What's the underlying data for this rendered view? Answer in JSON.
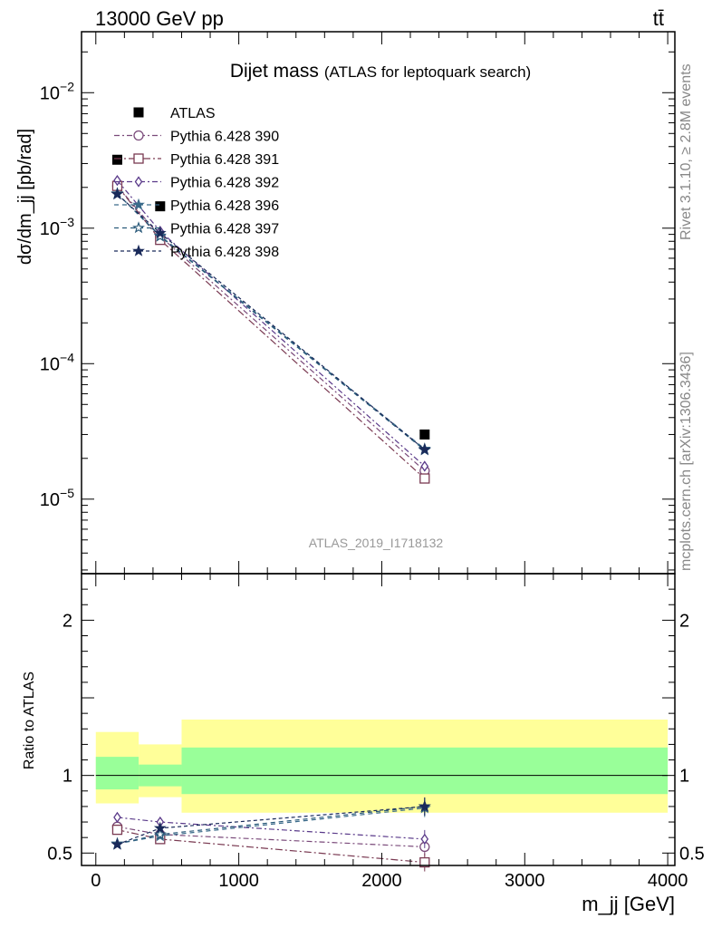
{
  "chart_data": {
    "type": "line",
    "header_left": "13000 GeV pp",
    "header_right": "tt̄",
    "title": "Dijet mass",
    "subtitle": "(ATLAS for leptoquark search)",
    "side_label_top": "Rivet 3.1.10, ≥ 2.8M events",
    "side_label_bottom": "mcplots.cern.ch [arXiv:1306.3436]",
    "watermark": "ATLAS_2019_I1718132",
    "ylabel_main": "dσ/dm_jj [pb/rad]",
    "ylabel_ratio": "Ratio to ATLAS",
    "xlabel": "m_jj [GeV]",
    "x_ticks": [
      "0",
      "1000",
      "2000",
      "3000",
      "4000"
    ],
    "y_ticks_main": [
      "10^-2",
      "10^-3",
      "10^-4",
      "10^-5"
    ],
    "y_ticks_ratio": [
      "0.5",
      "1",
      "2"
    ],
    "xlim": [
      -100,
      4050
    ],
    "ylim_main_log10": [
      -5.55,
      -1.55
    ],
    "ylim_ratio": [
      0.42,
      2.3
    ],
    "x": [
      150,
      450,
      2300
    ],
    "data": {
      "name": "ATLAS",
      "values": [
        0.0032,
        0.00145,
        3e-05
      ]
    },
    "series": [
      {
        "name": "Pythia 6.428 390",
        "color": "#7a4a7a",
        "marker": "circle",
        "values": [
          0.00205,
          0.00087,
          1.62e-05
        ],
        "ratio": [
          0.67,
          0.62,
          0.54
        ]
      },
      {
        "name": "Pythia 6.428 391",
        "color": "#7a3a52",
        "marker": "square",
        "values": [
          0.00205,
          0.00082,
          1.42e-05
        ],
        "ratio": [
          0.65,
          0.59,
          0.44
        ]
      },
      {
        "name": "Pythia 6.428 392",
        "color": "#5a3a8a",
        "marker": "diamond",
        "values": [
          0.00225,
          0.00095,
          1.75e-05
        ],
        "ratio": [
          0.73,
          0.7,
          0.59
        ]
      },
      {
        "name": "Pythia 6.428 396",
        "color": "#3a6a8a",
        "marker": "star",
        "values": [
          0.0018,
          0.00088,
          2.35e-05
        ],
        "ratio": [
          0.56,
          0.61,
          0.79
        ]
      },
      {
        "name": "Pythia 6.428 397",
        "color": "#2a5a7a",
        "marker": "star-open",
        "values": [
          0.0018,
          0.00087,
          2.3e-05
        ],
        "ratio": [
          0.56,
          0.62,
          0.8
        ]
      },
      {
        "name": "Pythia 6.428 398",
        "color": "#1a2a5a",
        "marker": "star",
        "values": [
          0.00178,
          0.00092,
          2.32e-05
        ],
        "ratio": [
          0.555,
          0.66,
          0.8
        ]
      }
    ],
    "uncertainty_bands": [
      {
        "x_range": [
          0,
          300
        ],
        "inner": [
          0.91,
          1.12
        ],
        "outer": [
          0.82,
          1.28
        ]
      },
      {
        "x_range": [
          300,
          600
        ],
        "inner": [
          0.93,
          1.07
        ],
        "outer": [
          0.86,
          1.2
        ]
      },
      {
        "x_range": [
          600,
          4000
        ],
        "inner": [
          0.88,
          1.18
        ],
        "outer": [
          0.76,
          1.36
        ]
      }
    ],
    "colors": {
      "band_inner": "#99ff99",
      "band_outer": "#ffff99",
      "data": "#000000"
    }
  }
}
